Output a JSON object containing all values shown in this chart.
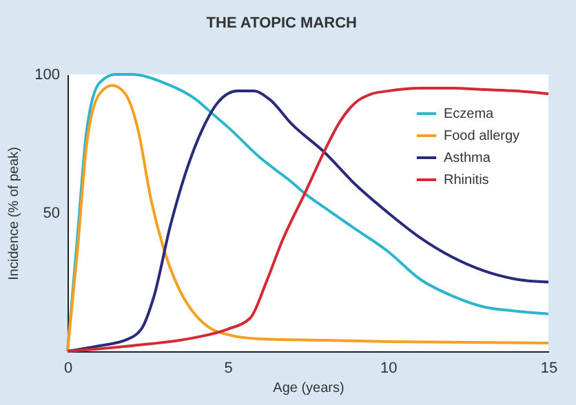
{
  "chart_data": {
    "type": "line",
    "title": "THE ATOPIC MARCH",
    "xlabel": "Age (years)",
    "ylabel": "Incidence (% of peak)",
    "xlim": [
      0,
      15
    ],
    "xticks": [
      0,
      5,
      10,
      15
    ],
    "ylim": [
      0,
      100
    ],
    "yticks": [
      50,
      100
    ],
    "grid": false,
    "legend": "top right",
    "marker": "none",
    "line_style": "solid",
    "series": [
      {
        "name": "Eczema",
        "color": "#2cb5cc",
        "x": [
          0,
          0.3,
          0.6,
          1,
          1.5,
          2,
          3,
          4,
          4.5,
          5,
          6,
          7,
          7.4,
          8,
          9,
          10,
          11,
          12,
          13,
          14,
          15
        ],
        "values": [
          0,
          40,
          80,
          97,
          100,
          100,
          97,
          91,
          86,
          81,
          70,
          61,
          57,
          52,
          44,
          36,
          26,
          20,
          16,
          14.5,
          13.5
        ]
      },
      {
        "name": "Food allergy",
        "color": "#f5a020",
        "x": [
          0,
          0.3,
          0.6,
          1,
          1.4,
          1.8,
          2.2,
          2.6,
          3,
          3.5,
          4,
          4.5,
          5,
          6,
          8,
          10,
          15
        ],
        "values": [
          0,
          35,
          75,
          93,
          96,
          93,
          80,
          55,
          37,
          22,
          13,
          8,
          6,
          4.5,
          4,
          3.5,
          3
        ]
      },
      {
        "name": "Asthma",
        "color": "#2a2a7a",
        "x": [
          0,
          1,
          1.8,
          2.3,
          2.7,
          3.2,
          3.7,
          4.2,
          4.7,
          5.3,
          5.8,
          6.3,
          7,
          8,
          9,
          10,
          11,
          12,
          13,
          14,
          15
        ],
        "values": [
          0,
          2,
          4,
          8,
          20,
          45,
          65,
          80,
          90,
          94,
          94,
          91,
          82,
          72,
          60,
          50,
          41,
          34,
          29,
          26,
          25
        ]
      },
      {
        "name": "Rhinitis",
        "color": "#d42a35",
        "x": [
          0,
          2,
          4,
          5,
          5.7,
          6.2,
          6.7,
          7.4,
          8,
          8.5,
          9,
          9.5,
          10,
          11,
          12,
          13,
          14,
          15
        ],
        "values": [
          0,
          2,
          5,
          8,
          12,
          25,
          40,
          57,
          72,
          83,
          90,
          93,
          94,
          95,
          95,
          94.5,
          94,
          93
        ]
      }
    ]
  }
}
